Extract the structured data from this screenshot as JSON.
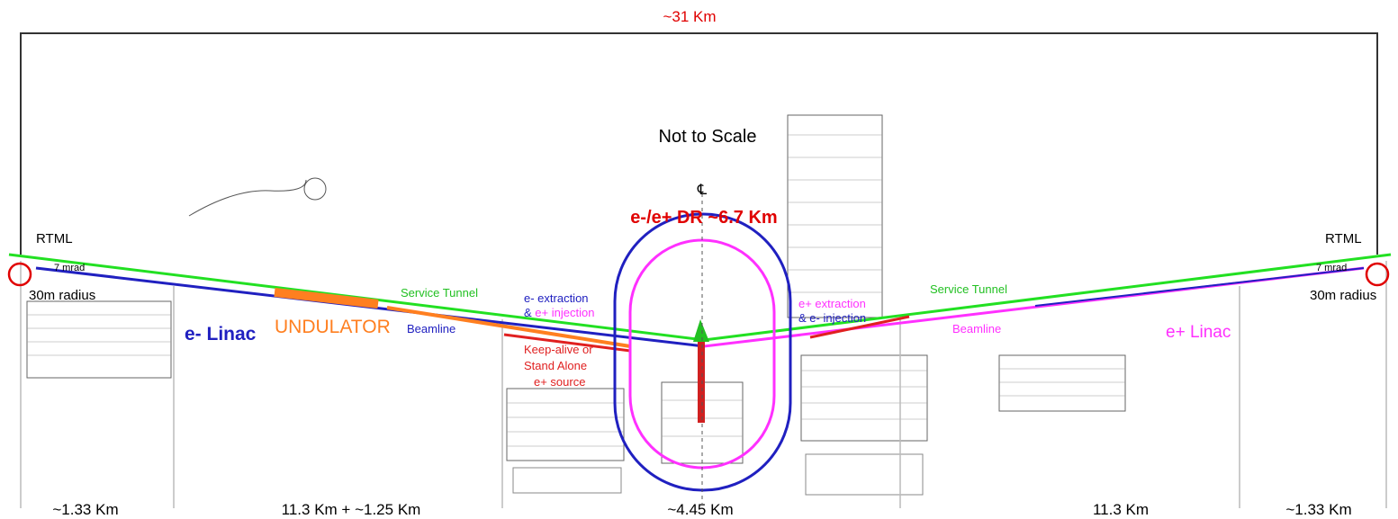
{
  "top_span": "~31 Km",
  "note": "Not to Scale",
  "centerline": "℄",
  "damping_ring": "e-/e+ DR ~6.7 Km",
  "electron_side": {
    "rtml": "RTML",
    "angle": "7 mrad",
    "radius": "30m radius",
    "linac": "e- Linac",
    "undulator": "UNDULATOR",
    "service_tunnel": "Service Tunnel",
    "beamline": "Beamline",
    "extraction": "e- extraction",
    "injection_amp": "&",
    "injection": "e+ injection"
  },
  "positron_side": {
    "rtml": "RTML",
    "angle": "7 mrad",
    "radius": "30m radius",
    "linac": "e+ Linac",
    "service_tunnel": "Service Tunnel",
    "beamline": "Beamline",
    "extraction": "e+ extraction",
    "injection_amp": "&",
    "injection": "e- injection"
  },
  "keep_alive_source": [
    "Keep-alive or",
    "Stand Alone",
    "e+ source"
  ],
  "segments": [
    "~1.33 Km",
    "11.3 Km + ~1.25 Km",
    "~4.45 Km",
    "11.3 Km",
    "~1.33 Km"
  ]
}
